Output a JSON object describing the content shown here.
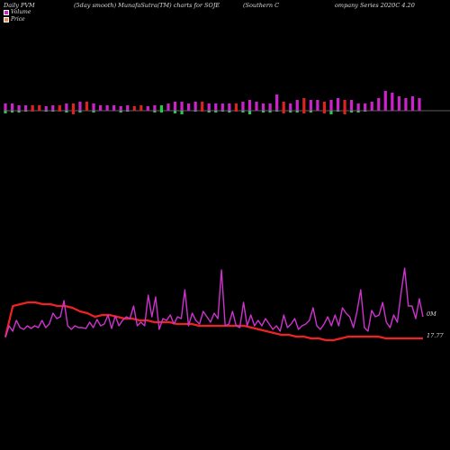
{
  "header": {
    "left": "Daily PVM",
    "mid1": "(5day smooth) MunafaSutra(TM) charts for SOJE",
    "mid2": "(Southern  C",
    "right": "ompany Series 2020C 4.20"
  },
  "legend": {
    "volume": "Volume",
    "price": "Price"
  },
  "colors": {
    "background": "#000000",
    "vol_up": "#cc22cc",
    "vol_down": "#dd2222",
    "vol_neg_green": "#22cc44",
    "pvm_line": "#cc33cc",
    "price_line": "#ee2222"
  },
  "chart_data": {
    "type": "line",
    "labels": {
      "pvm_end": "0M",
      "price_end": "17.77"
    },
    "volume_bars": [
      {
        "h": 8,
        "c": "m",
        "n": 3
      },
      {
        "h": 8,
        "c": "m",
        "n": 2
      },
      {
        "h": 6,
        "c": "m",
        "n": 2
      },
      {
        "h": 6,
        "c": "m",
        "n": 1
      },
      {
        "h": 6,
        "c": "r",
        "n": 1
      },
      {
        "h": 6,
        "c": "r",
        "n": 0
      },
      {
        "h": 5,
        "c": "m",
        "n": 1
      },
      {
        "h": 6,
        "c": "m",
        "n": 1
      },
      {
        "h": 6,
        "c": "r",
        "n": 1
      },
      {
        "h": 8,
        "c": "m",
        "n": 2
      },
      {
        "h": 8,
        "c": "r",
        "n": 4
      },
      {
        "h": 10,
        "c": "m",
        "n": 2
      },
      {
        "h": 10,
        "c": "r",
        "n": 0
      },
      {
        "h": 8,
        "c": "m",
        "n": 2
      },
      {
        "h": 6,
        "c": "m",
        "n": 0
      },
      {
        "h": 6,
        "c": "m",
        "n": 0
      },
      {
        "h": 6,
        "c": "m",
        "n": 0
      },
      {
        "h": 5,
        "c": "m",
        "n": 2
      },
      {
        "h": 6,
        "c": "m",
        "n": 1
      },
      {
        "h": 5,
        "c": "r",
        "n": 0
      },
      {
        "h": 6,
        "c": "r",
        "n": 0
      },
      {
        "h": 5,
        "c": "m",
        "n": 0
      },
      {
        "h": 6,
        "c": "m",
        "n": 2
      },
      {
        "h": 6,
        "c": "g",
        "n": 2
      },
      {
        "h": 8,
        "c": "m",
        "n": 0
      },
      {
        "h": 10,
        "c": "m",
        "n": 3
      },
      {
        "h": 10,
        "c": "m",
        "n": 4
      },
      {
        "h": 8,
        "c": "m",
        "n": 0
      },
      {
        "h": 10,
        "c": "m",
        "n": 1
      },
      {
        "h": 10,
        "c": "r",
        "n": 1
      },
      {
        "h": 8,
        "c": "m",
        "n": 2
      },
      {
        "h": 8,
        "c": "m",
        "n": 2
      },
      {
        "h": 8,
        "c": "m",
        "n": 1
      },
      {
        "h": 8,
        "c": "m",
        "n": 2
      },
      {
        "h": 8,
        "c": "r",
        "n": 1
      },
      {
        "h": 10,
        "c": "m",
        "n": 2
      },
      {
        "h": 12,
        "c": "m",
        "n": 4
      },
      {
        "h": 10,
        "c": "m",
        "n": 0
      },
      {
        "h": 8,
        "c": "m",
        "n": 2
      },
      {
        "h": 8,
        "c": "m",
        "n": 2
      },
      {
        "h": 18,
        "c": "m",
        "n": 1
      },
      {
        "h": 10,
        "c": "r",
        "n": 3
      },
      {
        "h": 8,
        "c": "m",
        "n": 2
      },
      {
        "h": 12,
        "c": "m",
        "n": 2
      },
      {
        "h": 14,
        "c": "r",
        "n": 3
      },
      {
        "h": 12,
        "c": "m",
        "n": 2
      },
      {
        "h": 12,
        "c": "m",
        "n": 0
      },
      {
        "h": 10,
        "c": "r",
        "n": 3
      },
      {
        "h": 12,
        "c": "m",
        "n": 4
      },
      {
        "h": 14,
        "c": "m",
        "n": 1
      },
      {
        "h": 12,
        "c": "r",
        "n": 4
      },
      {
        "h": 12,
        "c": "m",
        "n": 2
      },
      {
        "h": 8,
        "c": "m",
        "n": 2
      },
      {
        "h": 8,
        "c": "m",
        "n": 1
      },
      {
        "h": 10,
        "c": "m",
        "n": 0
      },
      {
        "h": 14,
        "c": "m",
        "n": 0
      },
      {
        "h": 22,
        "c": "m",
        "n": 0
      },
      {
        "h": 20,
        "c": "m",
        "n": 0
      },
      {
        "h": 16,
        "c": "m",
        "n": 0
      },
      {
        "h": 14,
        "c": "m",
        "n": 0
      },
      {
        "h": 16,
        "c": "m",
        "n": 0
      },
      {
        "h": 14,
        "c": "m",
        "n": 0
      }
    ],
    "pvm": [
      375,
      362,
      368,
      356,
      364,
      366,
      362,
      365,
      362,
      364,
      356,
      364,
      360,
      348,
      354,
      352,
      334,
      362,
      366,
      362,
      364,
      364,
      365,
      358,
      364,
      355,
      362,
      360,
      350,
      365,
      351,
      362,
      356,
      352,
      354,
      340,
      362,
      358,
      362,
      328,
      352,
      330,
      366,
      354,
      356,
      350,
      360,
      352,
      354,
      322,
      362,
      348,
      356,
      360,
      346,
      352,
      358,
      348,
      354,
      300,
      362,
      360,
      346,
      362,
      364,
      336,
      362,
      350,
      362,
      356,
      362,
      354,
      360,
      366,
      362,
      368,
      350,
      364,
      360,
      354,
      366,
      362,
      360,
      356,
      342,
      362,
      366,
      360,
      352,
      362,
      350,
      362,
      342,
      348,
      352,
      364,
      346,
      322,
      364,
      368,
      345,
      352,
      350,
      336,
      358,
      364,
      350,
      358,
      326,
      298,
      340,
      340,
      354,
      332,
      352
    ],
    "price": [
      374,
      340,
      338,
      336,
      336,
      338,
      338,
      340,
      340,
      342,
      346,
      348,
      352,
      350,
      350,
      352,
      354,
      354,
      356,
      356,
      358,
      358,
      358,
      360,
      360,
      360,
      362,
      362,
      362,
      362,
      362,
      362,
      362,
      364,
      366,
      368,
      370,
      372,
      372,
      374,
      374,
      376,
      376,
      378,
      378,
      376,
      374,
      374,
      374,
      374,
      374,
      376,
      376,
      376,
      376,
      376,
      376
    ]
  }
}
